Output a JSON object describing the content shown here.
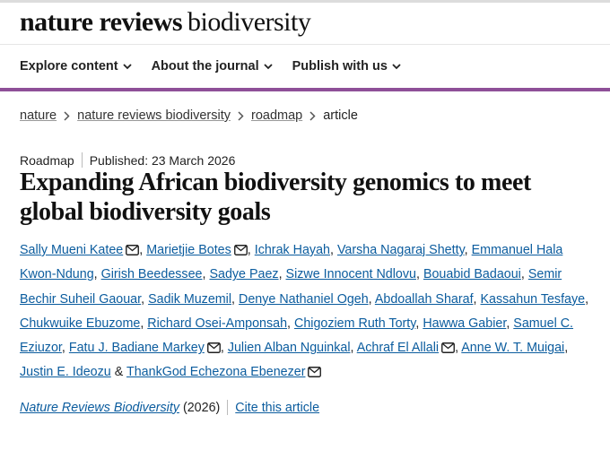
{
  "header": {
    "brand_bold": "nature reviews",
    "brand_light": "biodiversity"
  },
  "nav": [
    "Explore content",
    "About the journal",
    "Publish with us"
  ],
  "breadcrumbs": [
    "nature",
    "nature reviews biodiversity",
    "roadmap",
    "article"
  ],
  "article": {
    "type": "Roadmap",
    "published": "Published: 23 March 2026",
    "title": "Expanding African biodiversity genomics to meet global biodiversity goals",
    "separator": ",",
    "conjunction": "&",
    "authors": [
      {
        "name": "Sally Mueni Katee",
        "email": true
      },
      {
        "name": "Marietjie Botes",
        "email": true
      },
      {
        "name": "Ichrak Hayah",
        "email": false
      },
      {
        "name": "Varsha Nagaraj Shetty",
        "email": false
      },
      {
        "name": "Emmanuel Hala Kwon-Ndung",
        "email": false
      },
      {
        "name": "Girish Beedessee",
        "email": false
      },
      {
        "name": "Sadye Paez",
        "email": false
      },
      {
        "name": "Sizwe Innocent Ndlovu",
        "email": false
      },
      {
        "name": "Bouabid Badaoui",
        "email": false
      },
      {
        "name": "Semir Bechir Suheil Gaouar",
        "email": false
      },
      {
        "name": "Sadik Muzemil",
        "email": false
      },
      {
        "name": "Denye Nathaniel Ogeh",
        "email": false
      },
      {
        "name": "Abdoallah Sharaf",
        "email": false
      },
      {
        "name": "Kassahun Tesfaye",
        "email": false
      },
      {
        "name": "Chukwuike Ebuzome",
        "email": false
      },
      {
        "name": "Richard Osei-Amponsah",
        "email": false
      },
      {
        "name": "Chigoziem Ruth Torty",
        "email": false
      },
      {
        "name": "Hawwa Gabier",
        "email": false
      },
      {
        "name": "Samuel C. Eziuzor",
        "email": false
      },
      {
        "name": "Fatu J. Badiane Markey",
        "email": true
      },
      {
        "name": "Julien Alban Nguinkal",
        "email": false
      },
      {
        "name": "Achraf El Allali",
        "email": true
      },
      {
        "name": "Anne W. T. Muigai",
        "email": false
      },
      {
        "name": "Justin E. Ideozu",
        "email": false
      },
      {
        "name": "ThankGod Echezona Ebenezer",
        "email": true
      }
    ],
    "journal": "Nature Reviews Biodiversity",
    "year": "(2026)",
    "cite": "Cite this article"
  }
}
